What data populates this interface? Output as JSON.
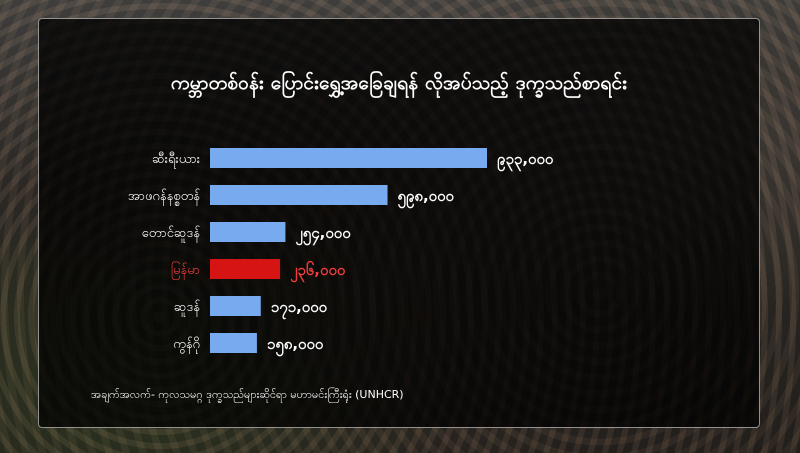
{
  "chart_data": {
    "type": "bar",
    "orientation": "horizontal",
    "title": "ကမ္ဘာတစ်ဝန်း ပြောင်းရွှေ့အခြေချရန် လိုအပ်သည့် ဒုက္ခသည်စာရင်း",
    "categories": [
      "ဆီးရီးယား",
      "အာဖဂန်နစ္စတန်",
      "တောင်ဆူဒန်",
      "မြန်မာ",
      "ဆူဒန်",
      "ကွန်ဂို"
    ],
    "values": [
      933000,
      598000,
      254000,
      236000,
      171000,
      158000
    ],
    "value_labels": [
      "၉၃၃,၀၀၀",
      "၅၉၈,၀၀၀",
      "၂၅၄,၀၀၀",
      "၂၃၆,၀၀၀",
      "၁၇၁,၀၀၀",
      "၁၅၈,၀၀၀"
    ],
    "highlight_index": 3,
    "xlim": [
      0,
      933000
    ],
    "grid": false,
    "colors": {
      "bar": "#78aaf0",
      "highlight": "#d61414",
      "highlight_label": "#f03c3c",
      "text": "#ffffff"
    }
  },
  "source": "အချက်အလက်- ကုလသမဂ္ဂ ဒုက္ခသည်များဆိုင်ရာ မဟာမင်းကြီးရုံး (UNHCR)"
}
